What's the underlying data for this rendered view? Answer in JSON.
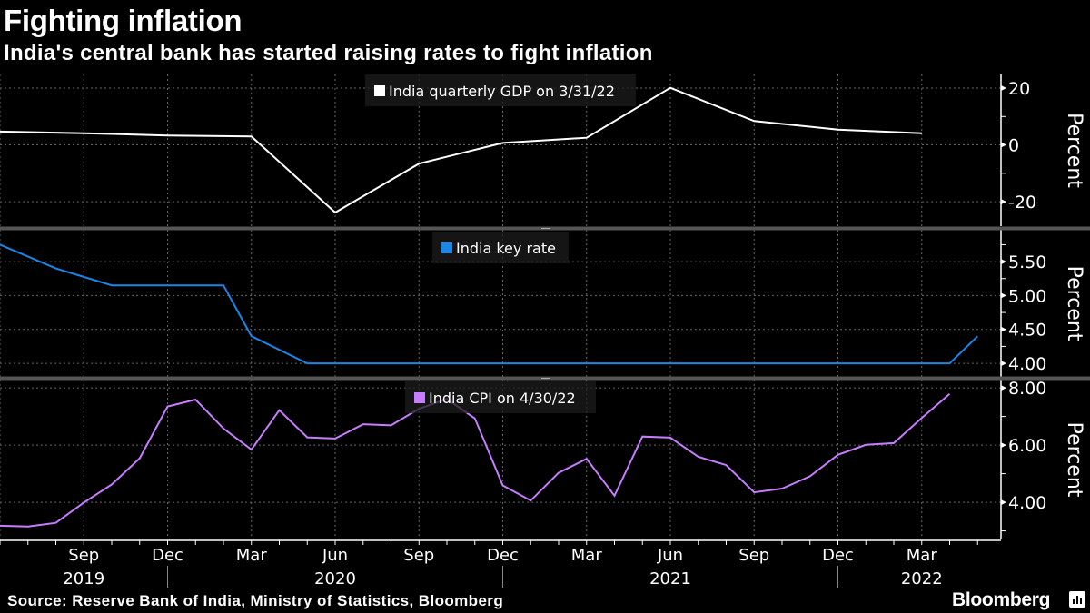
{
  "header": {
    "title": "Fighting inflation",
    "subtitle": "India's central bank has started raising rates to fight inflation"
  },
  "footer": {
    "source": "Source: Reserve Bank of India, Ministry of Statistics, Bloomberg",
    "logo": "Bloomberg"
  },
  "chart_data": [
    {
      "type": "line",
      "name": "gdp",
      "legend": "India quarterly GDP on 3/31/22",
      "color": "#ffffff",
      "ylabel": "Percent",
      "ylim": [
        -28.6,
        24.8
      ],
      "yticks": [
        20,
        0,
        -20
      ],
      "ytick_labels": [
        "20",
        "0",
        "-20"
      ],
      "minor_step": 10,
      "x": [
        "2019-06",
        "2019-09",
        "2019-12",
        "2020-03",
        "2020-06",
        "2020-09",
        "2020-12",
        "2021-03",
        "2021-06",
        "2021-09",
        "2021-12",
        "2022-03"
      ],
      "values": [
        4.7,
        4.1,
        3.3,
        3.0,
        -23.8,
        -6.6,
        0.7,
        2.5,
        20.1,
        8.4,
        5.4,
        4.1
      ]
    },
    {
      "type": "line",
      "name": "key-rate",
      "legend": "India key rate",
      "color": "#1a86e8",
      "ylabel": "Percent",
      "ylim": [
        3.8,
        5.97
      ],
      "yticks": [
        5.5,
        5.0,
        4.5,
        4.0
      ],
      "ytick_labels": [
        "5.50",
        "5.00",
        "4.50",
        "4.00"
      ],
      "minor_step": 0.25,
      "x": [
        "2019-06",
        "2019-08",
        "2019-10",
        "2020-02",
        "2020-03",
        "2020-05",
        "2022-04",
        "2022-05"
      ],
      "values": [
        5.75,
        5.4,
        5.15,
        5.15,
        4.4,
        4.0,
        4.0,
        4.4
      ]
    },
    {
      "type": "line",
      "name": "cpi",
      "legend": "India CPI on 4/30/22",
      "color": "#c77dff",
      "ylabel": "Percent",
      "ylim": [
        2.7,
        8.29
      ],
      "yticks": [
        8,
        6,
        4
      ],
      "ytick_labels": [
        "8.00",
        "6.00",
        "4.00"
      ],
      "minor_step": 1,
      "x": [
        "2019-06",
        "2019-07",
        "2019-08",
        "2019-09",
        "2019-10",
        "2019-11",
        "2019-12",
        "2020-01",
        "2020-02",
        "2020-03",
        "2020-04",
        "2020-05",
        "2020-06",
        "2020-07",
        "2020-08",
        "2020-09",
        "2020-10",
        "2020-11",
        "2020-12",
        "2021-01",
        "2021-02",
        "2021-03",
        "2021-04",
        "2021-05",
        "2021-06",
        "2021-07",
        "2021-08",
        "2021-09",
        "2021-10",
        "2021-11",
        "2021-12",
        "2022-01",
        "2022-02",
        "2022-03",
        "2022-04"
      ],
      "values": [
        3.18,
        3.15,
        3.28,
        3.99,
        4.62,
        5.54,
        7.35,
        7.59,
        6.58,
        5.84,
        7.22,
        6.27,
        6.23,
        6.73,
        6.69,
        7.27,
        7.61,
        6.93,
        4.59,
        4.06,
        5.03,
        5.52,
        4.23,
        6.3,
        6.26,
        5.59,
        5.3,
        4.35,
        4.48,
        4.91,
        5.66,
        6.01,
        6.07,
        6.95,
        7.79
      ]
    }
  ],
  "x_axis": {
    "start": "2019-06",
    "month_labels": [
      {
        "at": "2019-09",
        "label": "Sep"
      },
      {
        "at": "2019-12",
        "label": "Dec"
      },
      {
        "at": "2020-03",
        "label": "Mar"
      },
      {
        "at": "2020-06",
        "label": "Jun"
      },
      {
        "at": "2020-09",
        "label": "Sep"
      },
      {
        "at": "2020-12",
        "label": "Dec"
      },
      {
        "at": "2021-03",
        "label": "Mar"
      },
      {
        "at": "2021-06",
        "label": "Jun"
      },
      {
        "at": "2021-09",
        "label": "Sep"
      },
      {
        "at": "2021-12",
        "label": "Dec"
      },
      {
        "at": "2022-03",
        "label": "Mar"
      }
    ],
    "year_labels": [
      {
        "at": "2019-09",
        "label": "2019"
      },
      {
        "at": "2020-06",
        "label": "2020"
      },
      {
        "at": "2021-06",
        "label": "2021"
      },
      {
        "at": "2022-03",
        "label": "2022"
      }
    ],
    "year_separators": [
      "2019-12",
      "2020-12",
      "2021-12"
    ]
  }
}
